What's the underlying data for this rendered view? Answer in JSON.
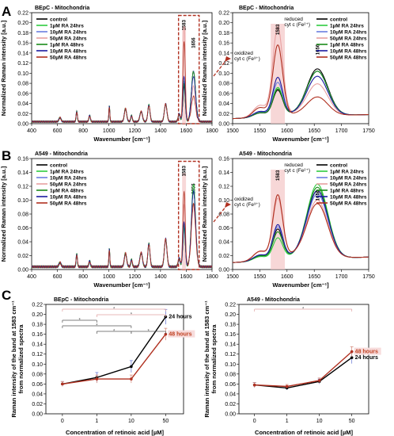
{
  "panel_letters": [
    "A",
    "B",
    "C"
  ],
  "colors": {
    "control": "#000000",
    "1uM RA 24hrs": "#2ecc40",
    "10uM RA 24hrs": "#6b7fe0",
    "50uM RA 24hrs": "#e8a0a0",
    "1uM RA 48hrs": "#1a8a1a",
    "10uM RA 48hrs": "#1a1aa0",
    "50uM RA 48hrs": "#b03020",
    "highlight": "#f3c6c6",
    "box": "#b03020",
    "sig_pink": "#e0a0a0",
    "sig_black": "#555555"
  },
  "chart_data": [
    {
      "id": "A-left",
      "type": "line",
      "title": "BEpC - Mitochondria",
      "xlabel": "Wavenumber [cm⁻¹]",
      "ylabel": "Normalized Raman intensity [a.u.]",
      "xlim": [
        400,
        1800
      ],
      "ylim": [
        0,
        0.22
      ],
      "xticks": [
        400,
        600,
        800,
        1000,
        1200,
        1400,
        1600,
        1800
      ],
      "yticks": [
        0.0,
        0.02,
        0.04,
        0.06,
        0.08,
        0.1,
        0.12,
        0.14,
        0.16,
        0.18,
        0.2,
        0.22
      ],
      "legend": [
        "control",
        "1µM RA 24hrs",
        "10µM RA 24hrs",
        "50µM RA 24hrs",
        "1µM RA 48hrs",
        "10µM RA 48hrs",
        "50µM RA 48hrs"
      ],
      "legend_position": "top-left",
      "annotations": [
        "1583",
        "1656"
      ],
      "highlight_band": [
        1540,
        1700
      ],
      "series": [
        {
          "name": "control",
          "values": [
            0.02,
            0.03,
            0.04,
            0.05,
            0.07,
            0.07,
            0.04,
            0.1
          ]
        },
        {
          "name": "1µM RA 24hrs",
          "values": [
            0.02,
            0.035,
            0.04,
            0.05,
            0.065,
            0.08,
            0.045,
            0.1
          ]
        },
        {
          "name": "10µM RA 24hrs",
          "values": [
            0.02,
            0.03,
            0.04,
            0.05,
            0.065,
            0.08,
            0.05,
            0.1
          ]
        },
        {
          "name": "50µM RA 24hrs",
          "values": [
            0.02,
            0.03,
            0.04,
            0.05,
            0.065,
            0.19,
            0.04,
            0.07
          ]
        },
        {
          "name": "1µM RA 48hrs",
          "values": [
            0.02,
            0.03,
            0.04,
            0.05,
            0.065,
            0.075,
            0.045,
            0.1
          ]
        },
        {
          "name": "10µM RA 48hrs",
          "values": [
            0.02,
            0.03,
            0.04,
            0.05,
            0.065,
            0.09,
            0.04,
            0.09
          ]
        },
        {
          "name": "50µM RA 48hrs",
          "values": [
            0.02,
            0.03,
            0.04,
            0.05,
            0.065,
            0.16,
            0.04,
            0.05
          ]
        }
      ]
    },
    {
      "id": "A-right",
      "type": "line",
      "title": "BEpC - Mitochondria",
      "xlabel": "Wavenumber [cm⁻¹]",
      "ylabel": "Normalized Raman intensity [a.u.]",
      "xlim": [
        1500,
        1750
      ],
      "ylim": [
        0,
        0.22
      ],
      "xticks": [
        1500,
        1550,
        1600,
        1650,
        1700,
        1750
      ],
      "yticks": [
        0.0,
        0.02,
        0.04,
        0.06,
        0.08,
        0.1,
        0.12,
        0.14,
        0.16,
        0.18,
        0.2,
        0.22
      ],
      "legend": [
        "control",
        "1µM RA 24hrs",
        "10µM RA 24hrs",
        "50µM RA 24hrs",
        "1µM RA 48hrs",
        "10µM RA 48hrs",
        "50µM RA 48hrs"
      ],
      "legend_position": "top-right",
      "annotations": [
        "1583",
        "1656",
        "reduced",
        "cyt c (Fe²⁺)",
        "oxidized",
        "cyt c (Fe³⁺)"
      ],
      "series": [
        {
          "name": "control",
          "peak1": 0.07,
          "peak2": 0.105,
          "valley": 0.038
        },
        {
          "name": "1µM RA 24hrs",
          "peak1": 0.075,
          "peak2": 0.1,
          "valley": 0.04
        },
        {
          "name": "10µM RA 24hrs",
          "peak1": 0.085,
          "peak2": 0.1,
          "valley": 0.04
        },
        {
          "name": "50µM RA 24hrs",
          "peak1": 0.195,
          "peak2": 0.075,
          "valley": 0.04
        },
        {
          "name": "1µM RA 48hrs",
          "peak1": 0.072,
          "peak2": 0.1,
          "valley": 0.04
        },
        {
          "name": "10µM RA 48hrs",
          "peak1": 0.095,
          "peak2": 0.09,
          "valley": 0.04
        },
        {
          "name": "50µM RA 48hrs",
          "peak1": 0.16,
          "peak2": 0.05,
          "valley": 0.035
        }
      ]
    },
    {
      "id": "B-left",
      "type": "line",
      "title": "A549 - Mitochondria",
      "xlabel": "Wavenumber [cm⁻¹]",
      "ylabel": "Normalized Raman intensity [a.u.]",
      "xlim": [
        400,
        1800
      ],
      "ylim": [
        0,
        0.16
      ],
      "xticks": [
        400,
        600,
        800,
        1000,
        1200,
        1400,
        1600,
        1800
      ],
      "yticks": [
        0.0,
        0.02,
        0.04,
        0.06,
        0.08,
        0.1,
        0.12,
        0.14,
        0.16
      ],
      "legend": [
        "control",
        "1µM RA 24hrs",
        "10µM RA 24hrs",
        "50µM RA 24hrs",
        "1µM RA 48hrs",
        "10µM RA 48hrs",
        "50µM RA 48hrs"
      ],
      "legend_position": "top-left",
      "annotations": [
        "1583",
        "1656"
      ],
      "highlight_band": [
        1540,
        1700
      ],
      "series": [
        {
          "name": "control",
          "values": [
            0.015,
            0.02,
            0.03,
            0.04,
            0.05,
            0.06,
            0.03,
            0.11
          ]
        },
        {
          "name": "1µM RA 24hrs",
          "values": [
            0.015,
            0.02,
            0.03,
            0.04,
            0.05,
            0.055,
            0.03,
            0.12
          ]
        },
        {
          "name": "10µM RA 24hrs",
          "values": [
            0.015,
            0.02,
            0.03,
            0.04,
            0.05,
            0.06,
            0.03,
            0.11
          ]
        },
        {
          "name": "50µM RA 24hrs",
          "values": [
            0.015,
            0.02,
            0.03,
            0.04,
            0.05,
            0.09,
            0.03,
            0.09
          ]
        },
        {
          "name": "1µM RA 48hrs",
          "values": [
            0.015,
            0.02,
            0.03,
            0.04,
            0.05,
            0.06,
            0.03,
            0.11
          ]
        },
        {
          "name": "10µM RA 48hrs",
          "values": [
            0.015,
            0.02,
            0.03,
            0.04,
            0.05,
            0.065,
            0.03,
            0.11
          ]
        },
        {
          "name": "50µM RA 48hrs",
          "values": [
            0.015,
            0.02,
            0.03,
            0.04,
            0.05,
            0.11,
            0.03,
            0.09
          ]
        }
      ]
    },
    {
      "id": "B-right",
      "type": "line",
      "title": "A549 - Mitochondria",
      "xlabel": "Wavenumber [cm⁻¹]",
      "ylabel": "Normalized Raman intensity [a.u.]",
      "xlim": [
        1500,
        1750
      ],
      "ylim": [
        0,
        0.16
      ],
      "xticks": [
        1500,
        1550,
        1600,
        1650,
        1700,
        1750
      ],
      "yticks": [
        0.0,
        0.02,
        0.04,
        0.06,
        0.08,
        0.1,
        0.12,
        0.14,
        0.16
      ],
      "legend": [
        "control",
        "1µM RA 24hrs",
        "10µM RA 24hrs",
        "50µM RA 24hrs",
        "1µM RA 48hrs",
        "10µM RA 48hrs",
        "50µM RA 48hrs"
      ],
      "legend_position": "top-right",
      "annotations": [
        "1583",
        "1656",
        "reduced",
        "cyt c (Fe²⁺)",
        "oxidized",
        "cyt c (Fe³⁺)"
      ],
      "series": [
        {
          "name": "control",
          "peak1": 0.062,
          "peak2": 0.11,
          "valley": 0.038
        },
        {
          "name": "1µM RA 24hrs",
          "peak1": 0.05,
          "peak2": 0.12,
          "valley": 0.035
        },
        {
          "name": "10µM RA 24hrs",
          "peak1": 0.065,
          "peak2": 0.105,
          "valley": 0.04
        },
        {
          "name": "50µM RA 24hrs",
          "peak1": 0.105,
          "peak2": 0.095,
          "valley": 0.045
        },
        {
          "name": "1µM RA 48hrs",
          "peak1": 0.058,
          "peak2": 0.115,
          "valley": 0.038
        },
        {
          "name": "10µM RA 48hrs",
          "peak1": 0.068,
          "peak2": 0.11,
          "valley": 0.04
        },
        {
          "name": "50µM RA 48hrs",
          "peak1": 0.11,
          "peak2": 0.09,
          "valley": 0.045
        }
      ]
    },
    {
      "id": "C-left",
      "type": "line",
      "title": "BEpC - Mitochondria",
      "xlabel": "Concentration of retinoic acid [µM]",
      "ylabel": "Raman intensity of the band at 1583 cm⁻¹ from normalized spectra",
      "categories": [
        "0",
        "1",
        "10",
        "50"
      ],
      "ylim": [
        0,
        0.22
      ],
      "yticks": [
        0.0,
        0.02,
        0.04,
        0.06,
        0.08,
        0.1,
        0.12,
        0.14,
        0.16,
        0.18,
        0.2,
        0.22
      ],
      "series": [
        {
          "name": "24 hours",
          "values": [
            0.06,
            0.073,
            0.095,
            0.195
          ],
          "errors": [
            0.005,
            0.01,
            0.012,
            0.015
          ]
        },
        {
          "name": "48 hours",
          "values": [
            0.06,
            0.07,
            0.07,
            0.16
          ],
          "errors": [
            0.005,
            0.008,
            0.008,
            0.012
          ]
        }
      ],
      "significance_marks": [
        "*",
        "*",
        "*",
        "*",
        "*",
        "*"
      ]
    },
    {
      "id": "C-right",
      "type": "line",
      "title": "A549 - Mitochondria",
      "xlabel": "Concentration of retinoic acid [µM]",
      "ylabel": "Raman intensity of the band at 1583 cm⁻¹ from normalized spectra",
      "categories": [
        "0",
        "1",
        "10",
        "50"
      ],
      "ylim": [
        0,
        0.22
      ],
      "yticks": [
        0.0,
        0.02,
        0.04,
        0.06,
        0.08,
        0.1,
        0.12,
        0.14,
        0.16,
        0.18,
        0.2,
        0.22
      ],
      "series": [
        {
          "name": "24 hours",
          "values": [
            0.058,
            0.052,
            0.065,
            0.113
          ],
          "errors": [
            0.005,
            0.004,
            0.005,
            0.012
          ]
        },
        {
          "name": "48 hours",
          "values": [
            0.058,
            0.055,
            0.067,
            0.125
          ],
          "errors": [
            0.005,
            0.004,
            0.005,
            0.01
          ]
        }
      ],
      "significance_marks": [
        "*"
      ]
    }
  ]
}
